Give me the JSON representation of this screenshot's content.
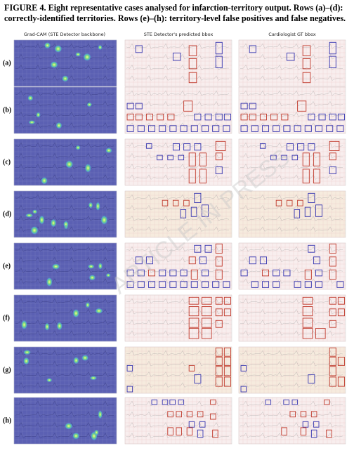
{
  "caption": [
    "FIGURE 4. Eight representative cases analysed for infarction-territory output. Rows (a)–(d):",
    "correctly-identified territories. Rows (e)–(h): territory-level false positives and false negatives."
  ],
  "column_headers": [
    "Grad-CAM (STE Detector backbone)",
    "STE Detector's predicted bbox",
    "Cardiologist GT bbox"
  ],
  "row_labels": [
    "(a)",
    "(b)",
    "(c)",
    "(d)",
    "(e)",
    "(f)",
    "(g)",
    "(h)"
  ],
  "watermark": "ARTICLE IN PRESS"
}
